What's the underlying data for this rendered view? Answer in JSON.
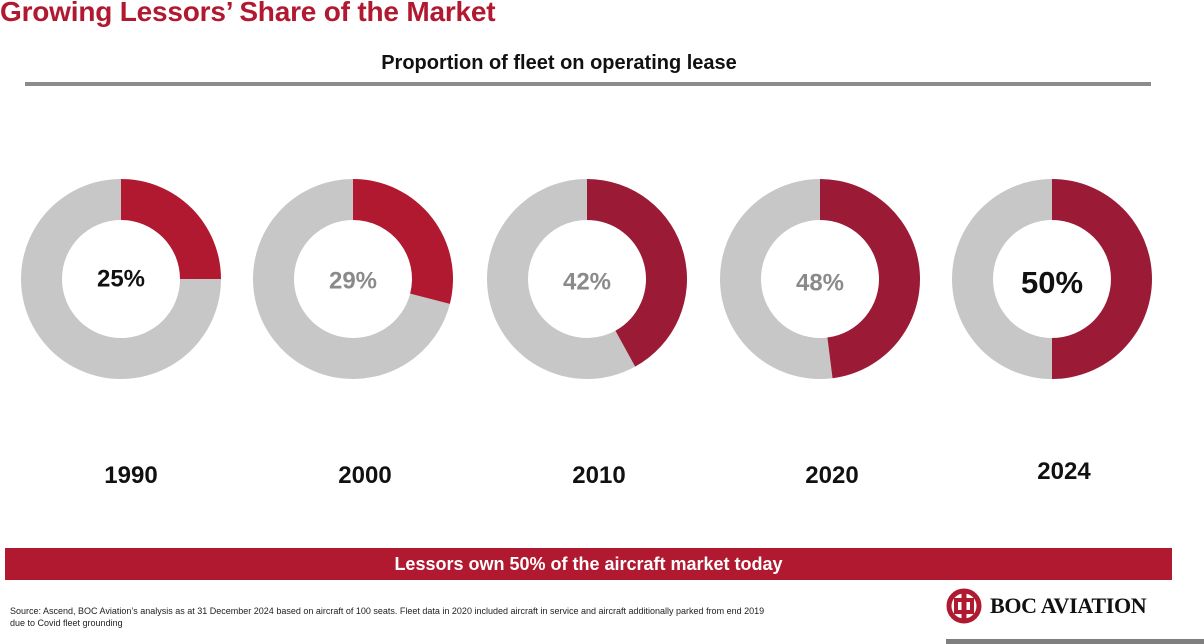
{
  "title": "Growing Lessors’ Share of the Market",
  "colors": {
    "accent": "#b0192f",
    "accent_dark": "#9b1a35",
    "remainder": "#c7c7c7",
    "rule": "#8c8c8c",
    "muted_label": "#8a8a8a",
    "dark_label": "#111111"
  },
  "chart_data": {
    "type": "donut",
    "title": "Proportion of fleet on operating lease",
    "unit": "%",
    "categories": [
      "1990",
      "2000",
      "2010",
      "2020",
      "2024"
    ],
    "values": [
      25,
      29,
      42,
      48,
      50
    ],
    "labels": [
      "25%",
      "29%",
      "42%",
      "48%",
      "50%"
    ],
    "label_style": [
      "dark",
      "muted",
      "muted",
      "muted",
      "dark"
    ],
    "segment_colors": [
      "accent",
      "accent",
      "accent_dark",
      "accent_dark",
      "accent_dark"
    ],
    "remainder_color": "remainder",
    "start_angle_deg": 0,
    "direction": "clockwise"
  },
  "banner": "Lessors own 50% of the aircraft market today",
  "footnote": "Source: Ascend, BOC Aviation’s analysis as at 31 December 2024 based on aircraft of 100 seats. Fleet data in 2020 included aircraft in service and aircraft additionally parked from end 2019 due to Covid fleet grounding",
  "logo": {
    "text": "BOC AVIATION",
    "icon": "bank-of-china-logo-icon"
  }
}
